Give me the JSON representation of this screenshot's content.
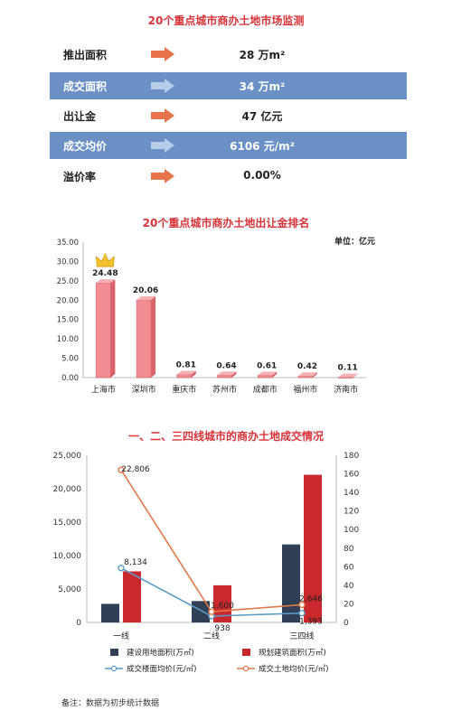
{
  "header": {
    "title": "20个重点城市商办土地市场监测"
  },
  "metrics": [
    {
      "label": "推出面积",
      "value": "28 万m²",
      "band": false
    },
    {
      "label": "成交面积",
      "value": "34 万m²",
      "band": true
    },
    {
      "label": "出让金",
      "value": "47 亿元",
      "band": false
    },
    {
      "label": "成交均价",
      "value": "6106 元/m²",
      "band": true
    },
    {
      "label": "溢价率",
      "value": "0.00%",
      "band": false
    }
  ],
  "colors": {
    "accent_red": "#d8343a",
    "band_blue": "#6a90c6",
    "arrow_orange": "#e8734a",
    "arrow_light": "#b8cde8",
    "bar_pink": "#f08c92",
    "navy": "#2f3f55",
    "dark_red": "#c9282d",
    "line_blue": "#5b9bc6",
    "line_orange": "#e07a4a"
  },
  "chart_data": [
    {
      "type": "bar",
      "title": "20个重点城市商办土地出让金排名",
      "unit_label": "单位：亿元",
      "categories": [
        "上海市",
        "深圳市",
        "重庆市",
        "苏州市",
        "成都市",
        "福州市",
        "济南市"
      ],
      "values": [
        24.48,
        20.06,
        0.81,
        0.64,
        0.61,
        0.42,
        0.11
      ],
      "value_labels": [
        "24.48",
        "20.06",
        "0.81",
        "0.64",
        "0.61",
        "0.42",
        "0.11"
      ],
      "ylim": [
        0,
        35
      ],
      "yticks": [
        "0.00",
        "5.00",
        "10.00",
        "15.00",
        "20.00",
        "25.00",
        "30.00",
        "35.00"
      ],
      "crown_icon": "crown-icon",
      "grid": false
    },
    {
      "type": "bar",
      "title": "一、二、三四线城市的商办土地成交情况",
      "categories": [
        "一线",
        "二线",
        "三四线"
      ],
      "ylim": [
        0,
        25000
      ],
      "yticks": [
        "0",
        "5,000",
        "10,000",
        "15,000",
        "20,000",
        "25,000"
      ],
      "y2lim": [
        0,
        180
      ],
      "y2ticks": [
        "0",
        "20",
        "40",
        "60",
        "80",
        "100",
        "120",
        "140",
        "160",
        "180"
      ],
      "series": [
        {
          "name": "建设用地面积(万㎡)",
          "kind": "bar",
          "axis": "right",
          "values": [
            20,
            23,
            84
          ]
        },
        {
          "name": "规划建筑面积(万㎡)",
          "kind": "bar",
          "axis": "right",
          "values": [
            55,
            40,
            159
          ]
        },
        {
          "name": "成交楼面均价(元/㎡)",
          "kind": "line",
          "axis": "left",
          "values": [
            8134,
            938,
            1393
          ],
          "labels": [
            "8,134",
            "938",
            "1,393"
          ]
        },
        {
          "name": "成交土地均价(元/㎡)",
          "kind": "line",
          "axis": "left",
          "values": [
            22806,
            1600,
            2646
          ],
          "labels": [
            "22,806",
            "1,600",
            "2,646"
          ]
        }
      ],
      "legend": "bottom",
      "grid": false
    }
  ],
  "footer": {
    "note": "备注：数据为初步统计数据"
  }
}
